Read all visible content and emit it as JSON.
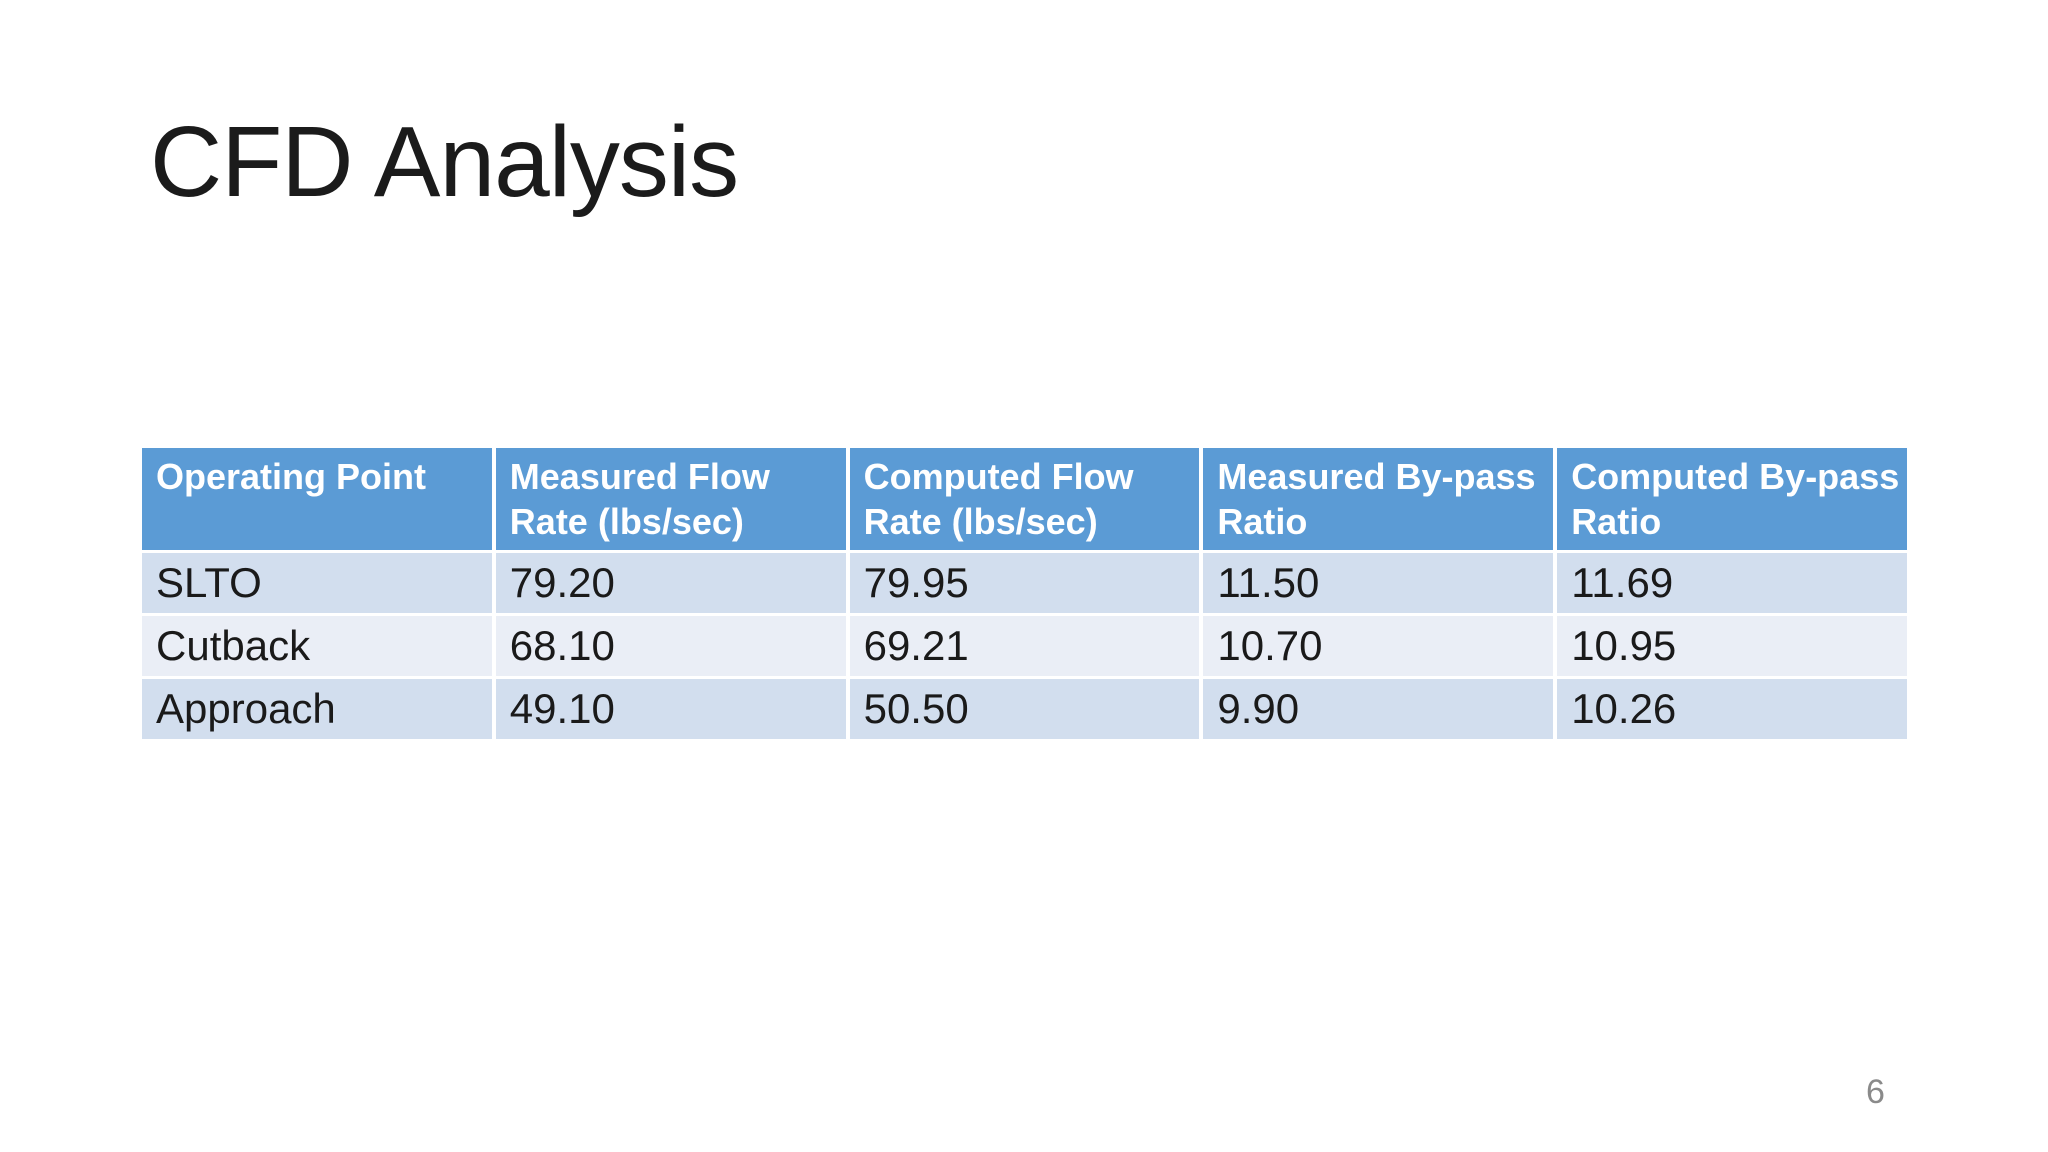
{
  "slide": {
    "title": "CFD Analysis",
    "page_number": "6"
  },
  "table": {
    "columns": [
      "Operating Point",
      "Measured Flow Rate (lbs/sec)",
      "Computed Flow Rate (lbs/sec)",
      "Measured By-pass Ratio",
      "Computed By-pass Ratio"
    ],
    "rows": [
      [
        "SLTO",
        "79.20",
        "79.95",
        "11.50",
        "11.69"
      ],
      [
        "Cutback",
        "68.10",
        "69.21",
        "10.70",
        "10.95"
      ],
      [
        "Approach",
        "49.10",
        "50.50",
        "9.90",
        "10.26"
      ]
    ]
  },
  "colors": {
    "header_bg": "#5B9BD5",
    "header_text": "#FFFFFF",
    "row_odd_bg": "#D2DEEE",
    "row_even_bg": "#EAEEF6",
    "body_text": "#1A1A1A",
    "title_text": "#1B1B1B",
    "page_number": "#8A8A8A"
  }
}
